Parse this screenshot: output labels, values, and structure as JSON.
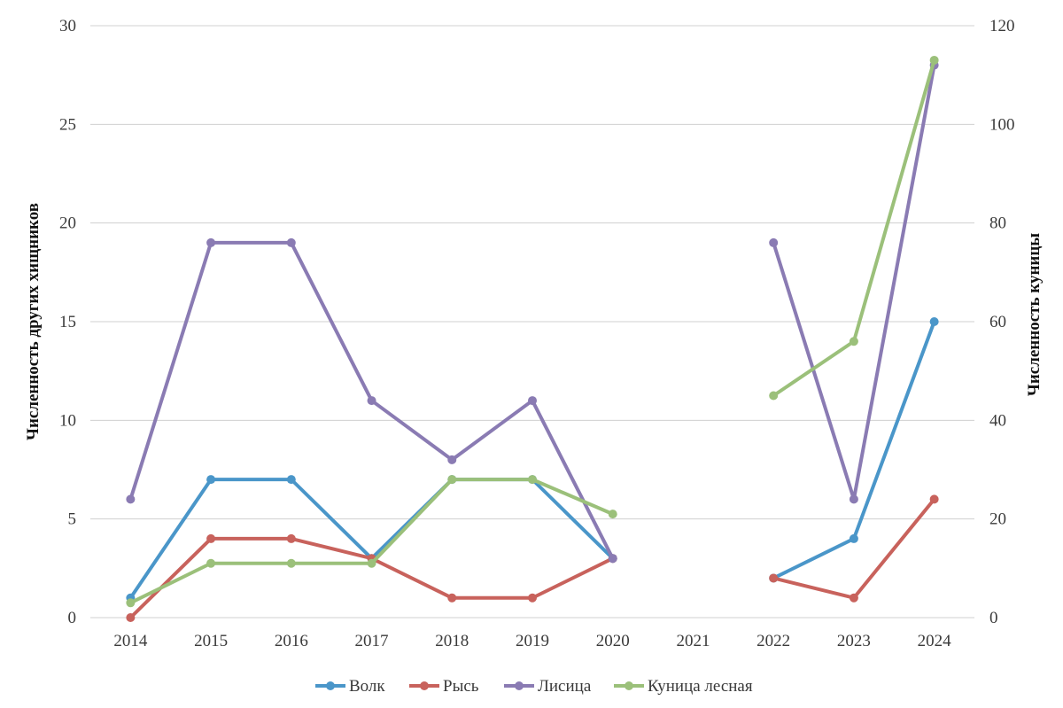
{
  "chart_data": {
    "type": "line",
    "categories": [
      "2014",
      "2015",
      "2016",
      "2017",
      "2018",
      "2019",
      "2020",
      "2021",
      "2022",
      "2023",
      "2024"
    ],
    "ylabel_left": "Численность других хищников",
    "ylabel_right": "Численность куницы",
    "ylim_left": [
      0,
      30
    ],
    "ylim_right": [
      0,
      120
    ],
    "yticks_left": [
      0,
      5,
      10,
      15,
      20,
      25,
      30
    ],
    "yticks_right": [
      0,
      20,
      40,
      60,
      80,
      100,
      120
    ],
    "grid": true,
    "legend_position": "bottom",
    "series": [
      {
        "name": "Волк",
        "axis": "left",
        "color": "#4a96c9",
        "values": [
          1,
          7,
          7,
          3,
          7,
          7,
          3,
          null,
          2,
          4,
          15
        ]
      },
      {
        "name": "Рысь",
        "axis": "left",
        "color": "#c8625c",
        "values": [
          0,
          4,
          4,
          3,
          1,
          1,
          3,
          null,
          2,
          1,
          6
        ]
      },
      {
        "name": "Лисица",
        "axis": "left",
        "color": "#8a7bb3",
        "values": [
          6,
          19,
          19,
          11,
          8,
          11,
          3,
          null,
          19,
          6,
          28
        ]
      },
      {
        "name": "Куница лесная",
        "axis": "right",
        "color": "#9bc07a",
        "values": [
          3,
          11,
          11,
          11,
          28,
          28,
          21,
          null,
          45,
          56,
          113
        ]
      }
    ]
  }
}
